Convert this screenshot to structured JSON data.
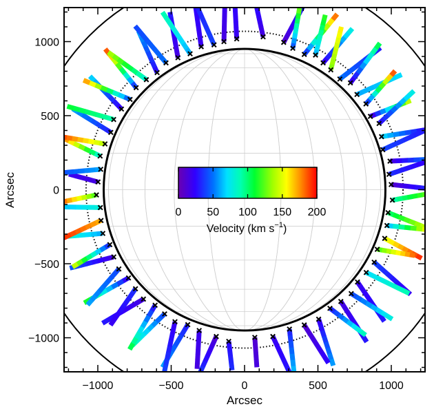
{
  "chart_data": {
    "type": "scatter",
    "title": "",
    "xlabel": "Arcsec",
    "ylabel": "Arcsec",
    "xlim": [
      -1230,
      1230
    ],
    "ylim": [
      -1230,
      1230
    ],
    "xticks": [
      -1000,
      -500,
      0,
      500,
      1000
    ],
    "yticks": [
      -1000,
      -500,
      0,
      500,
      1000
    ],
    "xtick_labels": [
      "−1000",
      "−500",
      "0",
      "500",
      "1000"
    ],
    "ytick_labels": [
      "−1000",
      "−500",
      "0",
      "500",
      "1000"
    ],
    "solar_radius": 960,
    "dotted_circle_radius": 1080,
    "outer_circle_radius": 1490,
    "grid": true,
    "colorbar": {
      "label_main": "Velocity (km s",
      "label_sup": "−1",
      "label_close": ")",
      "min": 0,
      "max": 200,
      "ticks": [
        0,
        50,
        100,
        150,
        200
      ],
      "tick_labels": [
        "0",
        "50",
        "100",
        "150",
        "200"
      ],
      "colormap": "rainbow"
    },
    "jets": [
      {
        "angle": 93,
        "r0": 1020,
        "r1": 1320,
        "dangle": 0,
        "v0": 20,
        "v1": 25
      },
      {
        "angle": 83,
        "r0": 1040,
        "r1": 1300,
        "dangle": 4,
        "v0": 15,
        "v1": 30
      },
      {
        "angle": 75,
        "r0": 1030,
        "r1": 1320,
        "dangle": -3,
        "v0": 10,
        "v1": 35
      },
      {
        "angle": 71,
        "r0": 1010,
        "r1": 1280,
        "dangle": 2,
        "v0": 40,
        "v1": 130
      },
      {
        "angle": 66,
        "r0": 1000,
        "r1": 1340,
        "dangle": -4,
        "v0": 30,
        "v1": 190
      },
      {
        "angle": 62,
        "r0": 1030,
        "r1": 1300,
        "dangle": 3,
        "v0": 60,
        "v1": 120
      },
      {
        "angle": 58,
        "r0": 1010,
        "r1": 1310,
        "dangle": -2,
        "v0": 20,
        "v1": 80
      },
      {
        "angle": 54,
        "r0": 1000,
        "r1": 1280,
        "dangle": 5,
        "v0": 130,
        "v1": 160
      },
      {
        "angle": 49,
        "r0": 990,
        "r1": 1330,
        "dangle": -3,
        "v0": 50,
        "v1": 30
      },
      {
        "angle": 45,
        "r0": 1020,
        "r1": 1350,
        "dangle": 2,
        "v0": 15,
        "v1": 110
      },
      {
        "angle": 40,
        "r0": 1000,
        "r1": 1320,
        "dangle": -4,
        "v0": 60,
        "v1": 70
      },
      {
        "angle": 35,
        "r0": 1010,
        "r1": 1300,
        "dangle": 3,
        "v0": 30,
        "v1": 195
      },
      {
        "angle": 30,
        "r0": 990,
        "r1": 1280,
        "dangle": -2,
        "v0": 10,
        "v1": 150
      },
      {
        "angle": 26,
        "r0": 1020,
        "r1": 1330,
        "dangle": 4,
        "v0": 25,
        "v1": 80
      },
      {
        "angle": 21,
        "r0": 1000,
        "r1": 1320,
        "dangle": -3,
        "v0": 70,
        "v1": 20
      },
      {
        "angle": 16,
        "r0": 980,
        "r1": 1290,
        "dangle": 2,
        "v0": 40,
        "v1": 30
      },
      {
        "angle": 11,
        "r0": 1010,
        "r1": 1330,
        "dangle": -2,
        "v0": 15,
        "v1": 60
      },
      {
        "angle": 6,
        "r0": 990,
        "r1": 1300,
        "dangle": 3,
        "v0": 35,
        "v1": 20
      },
      {
        "angle": 2,
        "r0": 1000,
        "r1": 1320,
        "dangle": -2,
        "v0": 10,
        "v1": 40
      },
      {
        "angle": -4,
        "r0": 1010,
        "r1": 1280,
        "dangle": 3,
        "v0": 90,
        "v1": 130
      },
      {
        "angle": -9,
        "r0": 990,
        "r1": 1300,
        "dangle": -3,
        "v0": 100,
        "v1": 150
      },
      {
        "angle": -14,
        "r0": 1000,
        "r1": 1320,
        "dangle": 2,
        "v0": 60,
        "v1": 170
      },
      {
        "angle": -19,
        "r0": 1010,
        "r1": 1290,
        "dangle": -2,
        "v0": 150,
        "v1": 195
      },
      {
        "angle": -24,
        "r0": 990,
        "r1": 1240,
        "dangle": 3,
        "v0": 120,
        "v1": 185
      },
      {
        "angle": -29,
        "r0": 1010,
        "r1": 1330,
        "dangle": -3,
        "v0": 40,
        "v1": 20
      },
      {
        "angle": -34,
        "r0": 1000,
        "r1": 1320,
        "dangle": 2,
        "v0": 70,
        "v1": 90
      },
      {
        "angle": -39,
        "r0": 990,
        "r1": 1300,
        "dangle": -4,
        "v0": 20,
        "v1": 30
      },
      {
        "angle": -44,
        "r0": 1010,
        "r1": 1330,
        "dangle": 3,
        "v0": 40,
        "v1": 80
      },
      {
        "angle": -49,
        "r0": 1000,
        "r1": 1320,
        "dangle": -2,
        "v0": 15,
        "v1": 30
      },
      {
        "angle": -54,
        "r0": 990,
        "r1": 1280,
        "dangle": 4,
        "v0": 30,
        "v1": 90
      },
      {
        "angle": -60,
        "r0": 1010,
        "r1": 1330,
        "dangle": -3,
        "v0": 20,
        "v1": 60
      },
      {
        "angle": -66,
        "r0": 1000,
        "r1": 1300,
        "dangle": 2,
        "v0": 10,
        "v1": 25
      },
      {
        "angle": -72,
        "r0": 990,
        "r1": 1320,
        "dangle": -3,
        "v0": 30,
        "v1": 70
      },
      {
        "angle": -79,
        "r0": 1010,
        "r1": 1280,
        "dangle": 3,
        "v0": 20,
        "v1": 30
      },
      {
        "angle": -86,
        "r0": 1000,
        "r1": 1200,
        "dangle": 0,
        "v0": 10,
        "v1": 15
      },
      {
        "angle": -96,
        "r0": 1030,
        "r1": 1220,
        "dangle": 2,
        "v0": 25,
        "v1": 35
      },
      {
        "angle": -101,
        "r0": 1010,
        "r1": 1300,
        "dangle": -3,
        "v0": 10,
        "v1": 40
      },
      {
        "angle": -108,
        "r0": 1000,
        "r1": 1250,
        "dangle": 3,
        "v0": 20,
        "v1": 15
      },
      {
        "angle": -113,
        "r0": 990,
        "r1": 1320,
        "dangle": -2,
        "v0": 30,
        "v1": 60
      },
      {
        "angle": -118,
        "r0": 1010,
        "r1": 1340,
        "dangle": 4,
        "v0": 20,
        "v1": 40
      },
      {
        "angle": -123,
        "r0": 1000,
        "r1": 1300,
        "dangle": -3,
        "v0": 40,
        "v1": 90
      },
      {
        "angle": -128,
        "r0": 990,
        "r1": 1330,
        "dangle": 2,
        "v0": 25,
        "v1": 110
      },
      {
        "angle": -133,
        "r0": 1010,
        "r1": 1320,
        "dangle": -4,
        "v0": 15,
        "v1": 30
      },
      {
        "angle": -138,
        "r0": 1000,
        "r1": 1290,
        "dangle": 3,
        "v0": 35,
        "v1": 20
      },
      {
        "angle": -143,
        "r0": 990,
        "r1": 1330,
        "dangle": -2,
        "v0": 20,
        "v1": 120
      },
      {
        "angle": -148,
        "r0": 1010,
        "r1": 1320,
        "dangle": 4,
        "v0": 40,
        "v1": 60
      },
      {
        "angle": -153,
        "r0": 1000,
        "r1": 1300,
        "dangle": -3,
        "v0": 15,
        "v1": 45
      },
      {
        "angle": -158,
        "r0": 990,
        "r1": 1280,
        "dangle": 2,
        "v0": 30,
        "v1": 150
      },
      {
        "angle": -163,
        "r0": 1010,
        "r1": 1330,
        "dangle": -3,
        "v0": 60,
        "v1": 90
      },
      {
        "angle": -168,
        "r0": 1000,
        "r1": 1300,
        "dangle": 3,
        "v0": 170,
        "v1": 195
      },
      {
        "angle": -173,
        "r0": 990,
        "r1": 1320,
        "dangle": -2,
        "v0": 80,
        "v1": 60
      },
      {
        "angle": -178,
        "r0": 1010,
        "r1": 1280,
        "dangle": 2,
        "v0": 120,
        "v1": 195
      },
      {
        "angle": 177,
        "r0": 1000,
        "r1": 1200,
        "dangle": -2,
        "v0": 15,
        "v1": 20
      },
      {
        "angle": 172,
        "r0": 990,
        "r1": 1280,
        "dangle": 3,
        "v0": 60,
        "v1": 40
      },
      {
        "angle": 167,
        "r0": 1010,
        "r1": 1320,
        "dangle": -3,
        "v0": 80,
        "v1": 195
      },
      {
        "angle": 162,
        "r0": 1000,
        "r1": 1300,
        "dangle": 2,
        "v0": 140,
        "v1": 190
      },
      {
        "angle": 157,
        "r0": 990,
        "r1": 1290,
        "dangle": -2,
        "v0": 30,
        "v1": 60
      },
      {
        "angle": 152,
        "r0": 1010,
        "r1": 1330,
        "dangle": 3,
        "v0": 90,
        "v1": 110
      },
      {
        "angle": 147,
        "r0": 1000,
        "r1": 1300,
        "dangle": -3,
        "v0": 20,
        "v1": 70
      },
      {
        "angle": 142,
        "r0": 990,
        "r1": 1320,
        "dangle": 4,
        "v0": 40,
        "v1": 180
      },
      {
        "angle": 137,
        "r0": 1010,
        "r1": 1340,
        "dangle": -2,
        "v0": 30,
        "v1": 195
      },
      {
        "angle": 132,
        "r0": 1000,
        "r1": 1310,
        "dangle": 3,
        "v0": 80,
        "v1": 140
      },
      {
        "angle": 127,
        "r0": 990,
        "r1": 1290,
        "dangle": -3,
        "v0": 25,
        "v1": 60
      },
      {
        "angle": 122,
        "r0": 1010,
        "r1": 1330,
        "dangle": 2,
        "v0": 50,
        "v1": 40
      },
      {
        "angle": 117,
        "r0": 1000,
        "r1": 1300,
        "dangle": -4,
        "v0": 15,
        "v1": 30
      },
      {
        "angle": 112,
        "r0": 990,
        "r1": 1320,
        "dangle": 3,
        "v0": 60,
        "v1": 90
      },
      {
        "angle": 107,
        "r0": 1010,
        "r1": 1300,
        "dangle": -2,
        "v0": 20,
        "v1": 25
      },
      {
        "angle": 102,
        "r0": 1000,
        "r1": 1330,
        "dangle": 3,
        "v0": 40,
        "v1": 30
      },
      {
        "angle": 98,
        "r0": 1010,
        "r1": 1280,
        "dangle": -2,
        "v0": 15,
        "v1": 20
      }
    ]
  }
}
